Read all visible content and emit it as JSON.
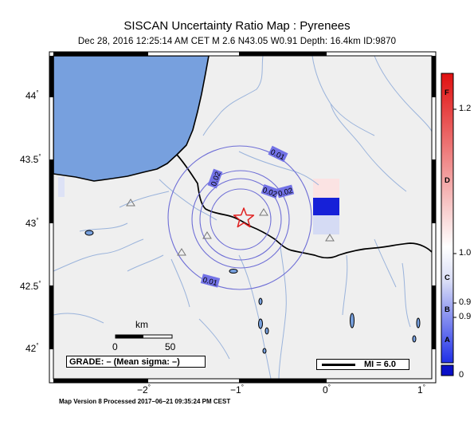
{
  "header": {
    "title": "SISCAN Uncertainty Ratio Map : Pyrenees",
    "subtitle": "Dec 28, 2016 12:25:14 AM CET   M 2.6   N43.05 W0.91   Depth: 16.4km   ID:9870"
  },
  "map": {
    "lat_labels": [
      "44",
      "43.5",
      "43",
      "42.5",
      "42"
    ],
    "lon_labels": [
      "−2",
      "−1",
      "0",
      "1"
    ],
    "degree_symbol": "°",
    "contour_labels": [
      "0.01",
      "0.02",
      "0.02",
      "0.02",
      "0.01"
    ],
    "colors": {
      "sea": "#77a0de",
      "land": "#efefef",
      "contour": "#6e6ed6",
      "rivers": "#9ab3db",
      "border": "#000000"
    }
  },
  "scale_bar": {
    "unit": "km",
    "ticks": [
      "0",
      "50"
    ]
  },
  "grade_box": {
    "text": "GRADE: – (Mean sigma: –)"
  },
  "mi_box": {
    "text": "MI = 6.0"
  },
  "colorbar": {
    "letters": [
      "F",
      "D",
      "C",
      "B",
      "A"
    ],
    "value_labels": [
      "1.2",
      "1.0",
      "0.9",
      "0.9",
      "0"
    ],
    "colors": {
      "top": "#e01010",
      "white": "#ffffff",
      "bottom": "#1020e0",
      "under": "#0a10c8"
    }
  },
  "footer": {
    "text": "Map Version 8 Processed 2017–06–21 09:35:24 PM CEST"
  }
}
